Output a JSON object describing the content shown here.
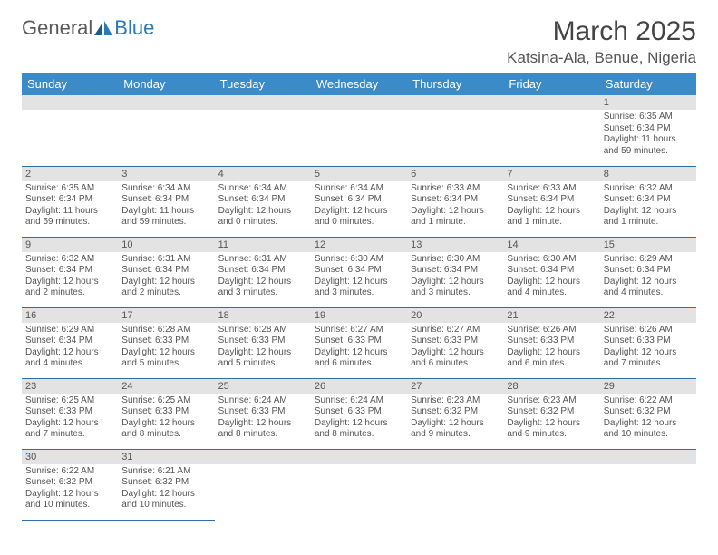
{
  "logo": {
    "part1": "General",
    "part2": "Blue"
  },
  "title": "March 2025",
  "location": "Katsina-Ala, Benue, Nigeria",
  "day_headers": [
    "Sunday",
    "Monday",
    "Tuesday",
    "Wednesday",
    "Thursday",
    "Friday",
    "Saturday"
  ],
  "colors": {
    "header_bg": "#3b8bc8",
    "header_text": "#ffffff",
    "daynum_bg": "#e3e3e3",
    "row_border": "#2f6fa8",
    "body_text": "#555555",
    "logo_gray": "#5a5a5a",
    "logo_blue": "#2a7ab8"
  },
  "weeks": [
    [
      {
        "n": "",
        "sr": "",
        "ss": "",
        "dl": ""
      },
      {
        "n": "",
        "sr": "",
        "ss": "",
        "dl": ""
      },
      {
        "n": "",
        "sr": "",
        "ss": "",
        "dl": ""
      },
      {
        "n": "",
        "sr": "",
        "ss": "",
        "dl": ""
      },
      {
        "n": "",
        "sr": "",
        "ss": "",
        "dl": ""
      },
      {
        "n": "",
        "sr": "",
        "ss": "",
        "dl": ""
      },
      {
        "n": "1",
        "sr": "Sunrise: 6:35 AM",
        "ss": "Sunset: 6:34 PM",
        "dl": "Daylight: 11 hours and 59 minutes."
      }
    ],
    [
      {
        "n": "2",
        "sr": "Sunrise: 6:35 AM",
        "ss": "Sunset: 6:34 PM",
        "dl": "Daylight: 11 hours and 59 minutes."
      },
      {
        "n": "3",
        "sr": "Sunrise: 6:34 AM",
        "ss": "Sunset: 6:34 PM",
        "dl": "Daylight: 11 hours and 59 minutes."
      },
      {
        "n": "4",
        "sr": "Sunrise: 6:34 AM",
        "ss": "Sunset: 6:34 PM",
        "dl": "Daylight: 12 hours and 0 minutes."
      },
      {
        "n": "5",
        "sr": "Sunrise: 6:34 AM",
        "ss": "Sunset: 6:34 PM",
        "dl": "Daylight: 12 hours and 0 minutes."
      },
      {
        "n": "6",
        "sr": "Sunrise: 6:33 AM",
        "ss": "Sunset: 6:34 PM",
        "dl": "Daylight: 12 hours and 1 minute."
      },
      {
        "n": "7",
        "sr": "Sunrise: 6:33 AM",
        "ss": "Sunset: 6:34 PM",
        "dl": "Daylight: 12 hours and 1 minute."
      },
      {
        "n": "8",
        "sr": "Sunrise: 6:32 AM",
        "ss": "Sunset: 6:34 PM",
        "dl": "Daylight: 12 hours and 1 minute."
      }
    ],
    [
      {
        "n": "9",
        "sr": "Sunrise: 6:32 AM",
        "ss": "Sunset: 6:34 PM",
        "dl": "Daylight: 12 hours and 2 minutes."
      },
      {
        "n": "10",
        "sr": "Sunrise: 6:31 AM",
        "ss": "Sunset: 6:34 PM",
        "dl": "Daylight: 12 hours and 2 minutes."
      },
      {
        "n": "11",
        "sr": "Sunrise: 6:31 AM",
        "ss": "Sunset: 6:34 PM",
        "dl": "Daylight: 12 hours and 3 minutes."
      },
      {
        "n": "12",
        "sr": "Sunrise: 6:30 AM",
        "ss": "Sunset: 6:34 PM",
        "dl": "Daylight: 12 hours and 3 minutes."
      },
      {
        "n": "13",
        "sr": "Sunrise: 6:30 AM",
        "ss": "Sunset: 6:34 PM",
        "dl": "Daylight: 12 hours and 3 minutes."
      },
      {
        "n": "14",
        "sr": "Sunrise: 6:30 AM",
        "ss": "Sunset: 6:34 PM",
        "dl": "Daylight: 12 hours and 4 minutes."
      },
      {
        "n": "15",
        "sr": "Sunrise: 6:29 AM",
        "ss": "Sunset: 6:34 PM",
        "dl": "Daylight: 12 hours and 4 minutes."
      }
    ],
    [
      {
        "n": "16",
        "sr": "Sunrise: 6:29 AM",
        "ss": "Sunset: 6:34 PM",
        "dl": "Daylight: 12 hours and 4 minutes."
      },
      {
        "n": "17",
        "sr": "Sunrise: 6:28 AM",
        "ss": "Sunset: 6:33 PM",
        "dl": "Daylight: 12 hours and 5 minutes."
      },
      {
        "n": "18",
        "sr": "Sunrise: 6:28 AM",
        "ss": "Sunset: 6:33 PM",
        "dl": "Daylight: 12 hours and 5 minutes."
      },
      {
        "n": "19",
        "sr": "Sunrise: 6:27 AM",
        "ss": "Sunset: 6:33 PM",
        "dl": "Daylight: 12 hours and 6 minutes."
      },
      {
        "n": "20",
        "sr": "Sunrise: 6:27 AM",
        "ss": "Sunset: 6:33 PM",
        "dl": "Daylight: 12 hours and 6 minutes."
      },
      {
        "n": "21",
        "sr": "Sunrise: 6:26 AM",
        "ss": "Sunset: 6:33 PM",
        "dl": "Daylight: 12 hours and 6 minutes."
      },
      {
        "n": "22",
        "sr": "Sunrise: 6:26 AM",
        "ss": "Sunset: 6:33 PM",
        "dl": "Daylight: 12 hours and 7 minutes."
      }
    ],
    [
      {
        "n": "23",
        "sr": "Sunrise: 6:25 AM",
        "ss": "Sunset: 6:33 PM",
        "dl": "Daylight: 12 hours and 7 minutes."
      },
      {
        "n": "24",
        "sr": "Sunrise: 6:25 AM",
        "ss": "Sunset: 6:33 PM",
        "dl": "Daylight: 12 hours and 8 minutes."
      },
      {
        "n": "25",
        "sr": "Sunrise: 6:24 AM",
        "ss": "Sunset: 6:33 PM",
        "dl": "Daylight: 12 hours and 8 minutes."
      },
      {
        "n": "26",
        "sr": "Sunrise: 6:24 AM",
        "ss": "Sunset: 6:33 PM",
        "dl": "Daylight: 12 hours and 8 minutes."
      },
      {
        "n": "27",
        "sr": "Sunrise: 6:23 AM",
        "ss": "Sunset: 6:32 PM",
        "dl": "Daylight: 12 hours and 9 minutes."
      },
      {
        "n": "28",
        "sr": "Sunrise: 6:23 AM",
        "ss": "Sunset: 6:32 PM",
        "dl": "Daylight: 12 hours and 9 minutes."
      },
      {
        "n": "29",
        "sr": "Sunrise: 6:22 AM",
        "ss": "Sunset: 6:32 PM",
        "dl": "Daylight: 12 hours and 10 minutes."
      }
    ],
    [
      {
        "n": "30",
        "sr": "Sunrise: 6:22 AM",
        "ss": "Sunset: 6:32 PM",
        "dl": "Daylight: 12 hours and 10 minutes."
      },
      {
        "n": "31",
        "sr": "Sunrise: 6:21 AM",
        "ss": "Sunset: 6:32 PM",
        "dl": "Daylight: 12 hours and 10 minutes."
      },
      {
        "n": "",
        "sr": "",
        "ss": "",
        "dl": ""
      },
      {
        "n": "",
        "sr": "",
        "ss": "",
        "dl": ""
      },
      {
        "n": "",
        "sr": "",
        "ss": "",
        "dl": ""
      },
      {
        "n": "",
        "sr": "",
        "ss": "",
        "dl": ""
      },
      {
        "n": "",
        "sr": "",
        "ss": "",
        "dl": ""
      }
    ]
  ]
}
